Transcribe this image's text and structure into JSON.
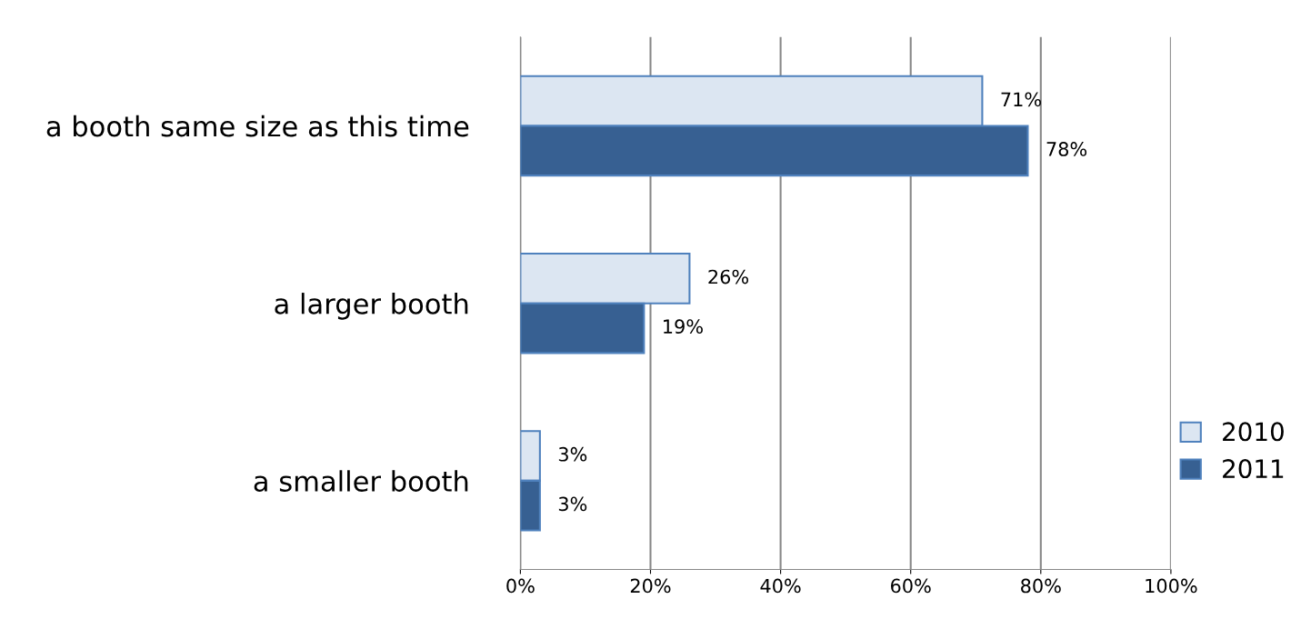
{
  "chart_data": {
    "type": "bar",
    "orientation": "horizontal",
    "categories": [
      "a booth same size as this time",
      "a larger booth",
      "a smaller booth"
    ],
    "series": [
      {
        "name": "2010",
        "color": "#dce6f2",
        "values": [
          71,
          26,
          3
        ],
        "value_labels": [
          "71%",
          "26%",
          "3%"
        ]
      },
      {
        "name": "2011",
        "color": "#376092",
        "values": [
          78,
          19,
          3
        ],
        "value_labels": [
          "78%",
          "19%",
          "3%"
        ]
      }
    ],
    "xlim": [
      0,
      100
    ],
    "xticks": [
      {
        "value": 0,
        "label": "0%"
      },
      {
        "value": 20,
        "label": "20%"
      },
      {
        "value": 40,
        "label": "40%"
      },
      {
        "value": 60,
        "label": "60%"
      },
      {
        "value": 80,
        "label": "80%"
      },
      {
        "value": 100,
        "label": "100%"
      }
    ],
    "grid": "x",
    "legend": "right"
  }
}
